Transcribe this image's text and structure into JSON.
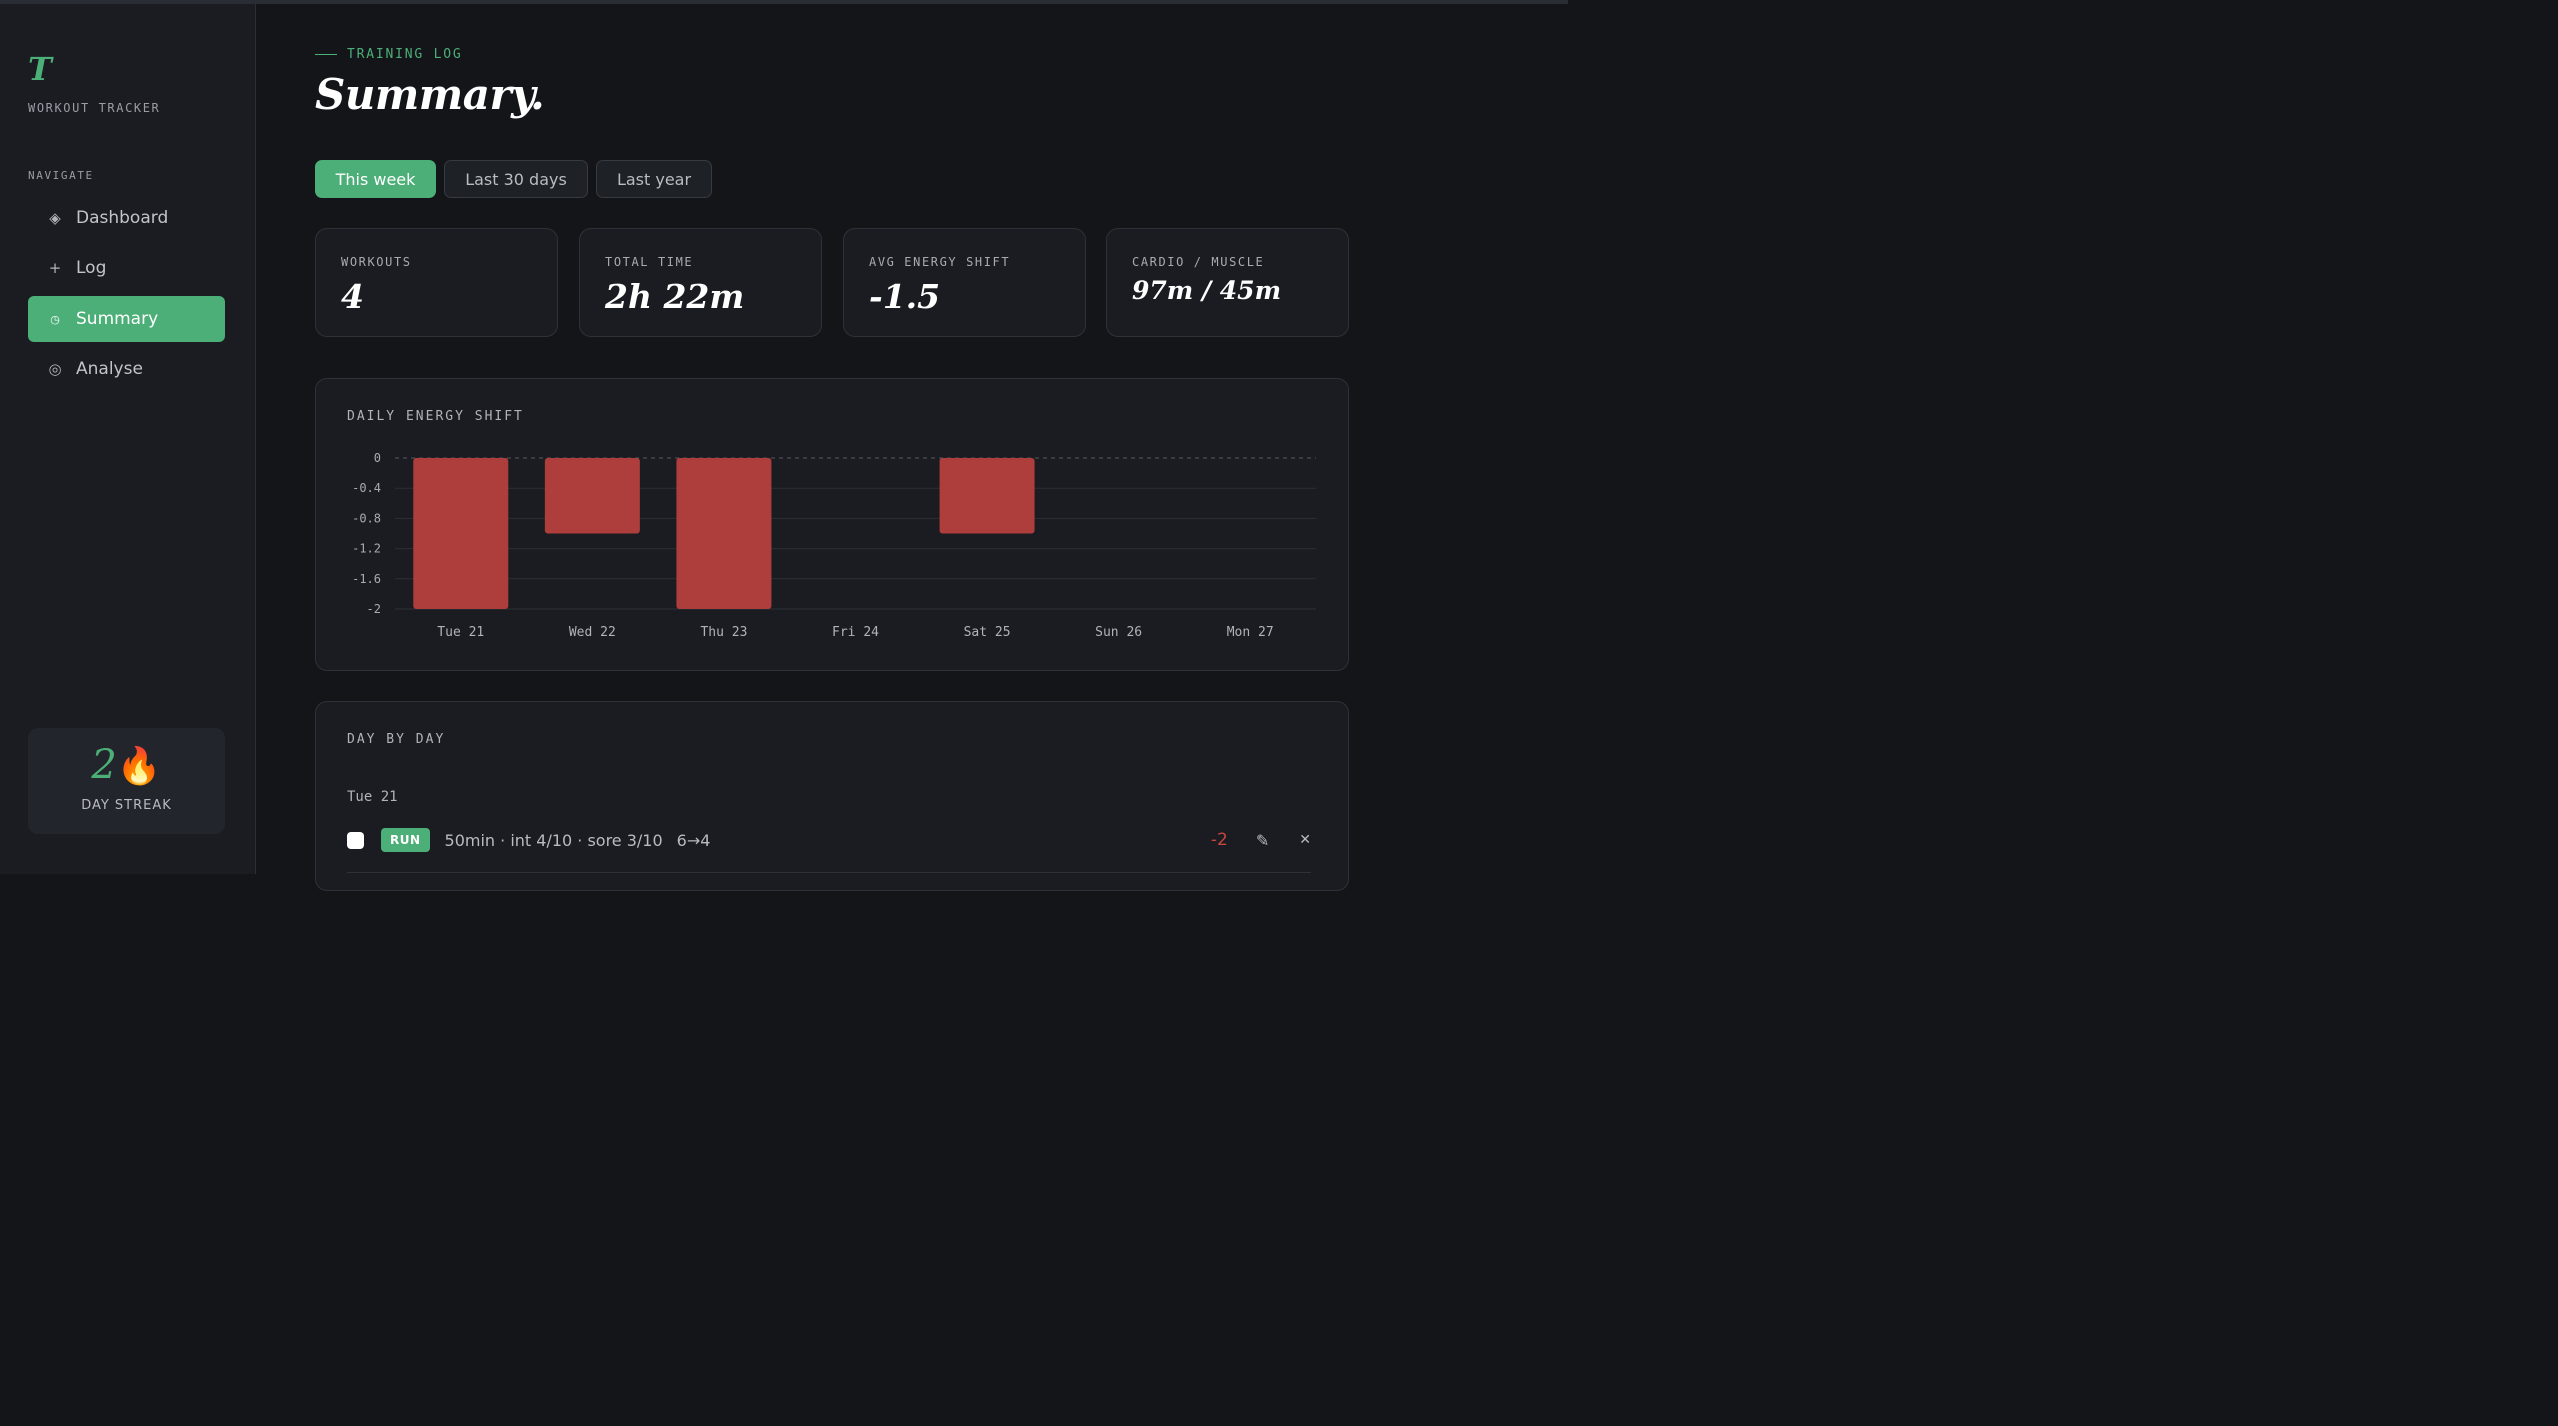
{
  "sidebar": {
    "logo": "T",
    "app_name": "WORKOUT TRACKER",
    "nav_heading": "NAVIGATE",
    "items": [
      {
        "label": "Dashboard",
        "icon": "diamond-icon",
        "glyph": "◈"
      },
      {
        "label": "Log",
        "icon": "plus-icon",
        "glyph": "+"
      },
      {
        "label": "Summary",
        "icon": "clock-icon",
        "glyph": "◷",
        "active": true
      },
      {
        "label": "Analyse",
        "icon": "circle-icon",
        "glyph": "◎"
      }
    ],
    "streak": {
      "value": "2",
      "emoji": "🔥",
      "label": "DAY STREAK"
    }
  },
  "header": {
    "eyebrow": "TRAINING LOG",
    "title": "Summary."
  },
  "tabs": [
    {
      "label": "This week",
      "active": true
    },
    {
      "label": "Last 30 days",
      "active": false
    },
    {
      "label": "Last year",
      "active": false
    }
  ],
  "stats": [
    {
      "label": "WORKOUTS",
      "value": "4"
    },
    {
      "label": "TOTAL TIME",
      "value": "2h 22m"
    },
    {
      "label": "AVG ENERGY SHIFT",
      "value": "-1.5"
    },
    {
      "label": "CARDIO / MUSCLE",
      "value": "97m / 45m"
    }
  ],
  "chart_card": {
    "title": "DAILY ENERGY SHIFT"
  },
  "chart_data": {
    "type": "bar",
    "title": "DAILY ENERGY SHIFT",
    "categories": [
      "Tue 21",
      "Wed 22",
      "Thu 23",
      "Fri 24",
      "Sat 25",
      "Sun 26",
      "Mon 27"
    ],
    "values": [
      -2,
      -1,
      -2,
      0,
      -1,
      0,
      0
    ],
    "ylim": [
      -2,
      0
    ],
    "yticks": [
      0,
      -0.4,
      -0.8,
      -1.2,
      -1.6,
      -2
    ],
    "ytick_labels": [
      "0",
      "-0.4",
      "-0.8",
      "-1.2",
      "-1.6",
      "-2"
    ],
    "grid": true,
    "bar_color": "#ad3e3b"
  },
  "day_by_day": {
    "title": "DAY BY DAY",
    "days": [
      {
        "day": "Tue 21",
        "entries": [
          {
            "type": "RUN",
            "details": "50min · int 4/10 · sore 3/10",
            "energy": "6→4",
            "delta": "-2"
          }
        ]
      }
    ]
  },
  "colors": {
    "accent": "#4caf78",
    "negative": "#ad3e3b",
    "background": "#131519",
    "panel": "#1a1c21"
  }
}
